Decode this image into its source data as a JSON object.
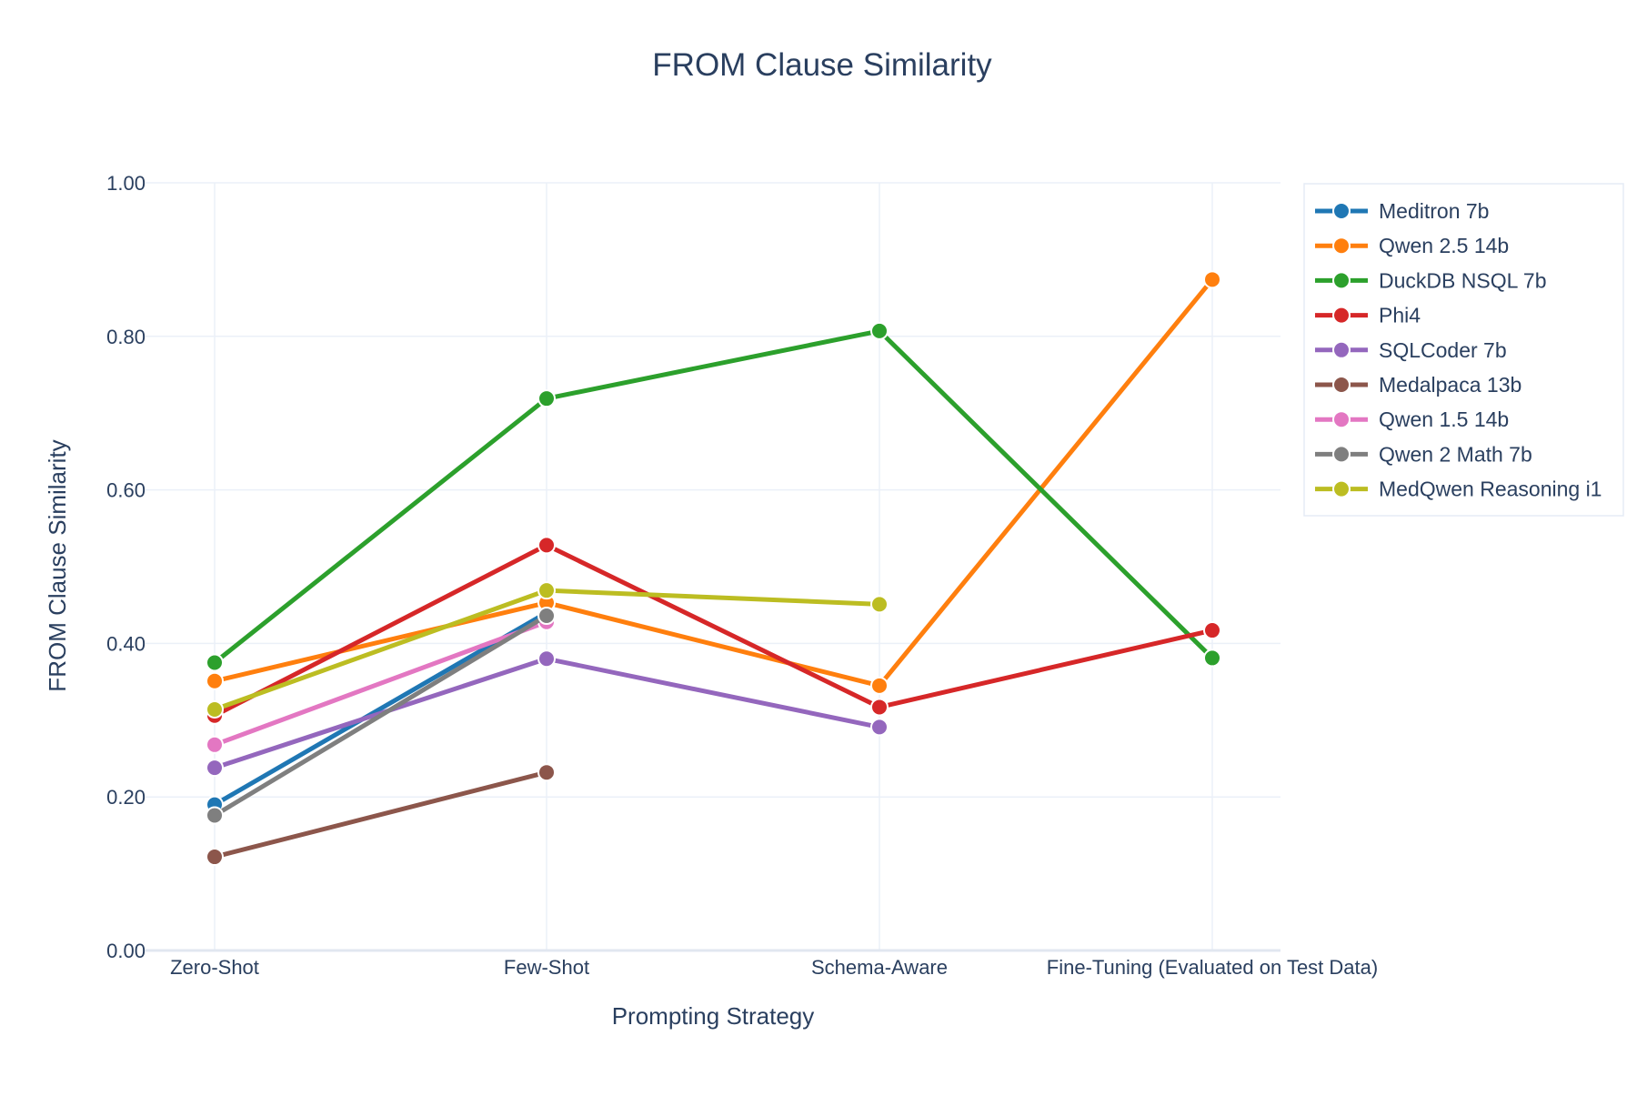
{
  "chart_data": {
    "type": "line",
    "title": "FROM Clause Similarity",
    "xlabel": "Prompting Strategy",
    "ylabel": "FROM Clause Similarity",
    "categories": [
      "Zero-Shot",
      "Few-Shot",
      "Schema-Aware",
      "Fine-Tuning (Evaluated on Test Data)"
    ],
    "ylim": [
      0,
      1
    ],
    "yticks": [
      0,
      0.2,
      0.4,
      0.6,
      0.8,
      1.0
    ],
    "ytick_labels": [
      "0.00",
      "0.20",
      "0.40",
      "0.60",
      "0.80",
      "1.00"
    ],
    "grid": true,
    "legend_position": "top-right",
    "series": [
      {
        "name": "Meditron 7b",
        "color": "#1f77b4",
        "values": [
          0.19,
          0.44,
          null,
          null
        ]
      },
      {
        "name": "Qwen 2.5 14b",
        "color": "#ff7f0e",
        "values": [
          0.351,
          0.453,
          0.345,
          0.874
        ]
      },
      {
        "name": "DuckDB NSQL 7b",
        "color": "#2ca02c",
        "values": [
          0.375,
          0.719,
          0.807,
          0.381
        ]
      },
      {
        "name": "Phi4",
        "color": "#d62728",
        "values": [
          0.306,
          0.528,
          0.317,
          0.417
        ]
      },
      {
        "name": "SQLCoder 7b",
        "color": "#9467bd",
        "values": [
          0.238,
          0.38,
          0.291,
          null
        ]
      },
      {
        "name": "Medalpaca 13b",
        "color": "#8c564b",
        "values": [
          0.122,
          0.232,
          null,
          null
        ]
      },
      {
        "name": "Qwen 1.5 14b",
        "color": "#e377c2",
        "values": [
          0.268,
          0.428,
          null,
          null
        ]
      },
      {
        "name": "Qwen 2 Math 7b",
        "color": "#7f7f7f",
        "values": [
          0.176,
          0.436,
          null,
          null
        ]
      },
      {
        "name": "MedQwen Reasoning i1",
        "color": "#bcbd22",
        "values": [
          0.314,
          0.469,
          0.451,
          null
        ]
      }
    ]
  }
}
